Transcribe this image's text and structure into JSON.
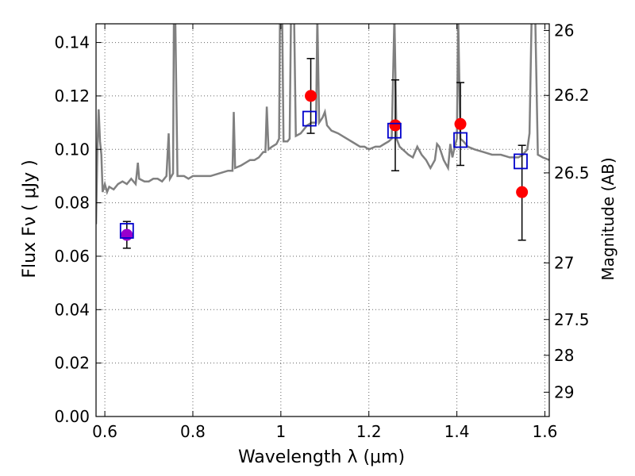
{
  "chart_data": {
    "type": "scatter",
    "xlabel": "Wavelength  λ (μm)",
    "ylabel": "Flux  Fν  ( μJy )",
    "y2label": "Magnitude (AB)",
    "xlim": [
      0.58,
      1.61
    ],
    "ylim": [
      0.0,
      0.147
    ],
    "x_ticks": [
      0.6,
      0.8,
      1.0,
      1.2,
      1.4,
      1.6
    ],
    "x_tick_labels": [
      "0.6",
      "0.8",
      "1",
      "1.2",
      "1.4",
      "1.6"
    ],
    "y_ticks": [
      0.0,
      0.02,
      0.04,
      0.06,
      0.08,
      0.1,
      0.12,
      0.14
    ],
    "y_tick_labels": [
      "0.00",
      "0.02",
      "0.04",
      "0.06",
      "0.08",
      "0.10",
      "0.12",
      "0.14"
    ],
    "mag_ticks": [
      {
        "label": "26",
        "flux": 0.1445
      },
      {
        "label": "26.2",
        "flux": 0.1202
      },
      {
        "label": "26.5",
        "flux": 0.0912
      },
      {
        "label": "27",
        "flux": 0.0575
      },
      {
        "label": "27.5",
        "flux": 0.0363
      },
      {
        "label": "28",
        "flux": 0.0229
      },
      {
        "label": "29",
        "flux": 0.0091
      }
    ],
    "grid": true,
    "colors": {
      "spectrum": "#808080",
      "observed": "#ff0000",
      "observed_first": "#9900cc",
      "model": "#0000cc",
      "errorbar": "#000000"
    },
    "series": [
      {
        "kind": "line",
        "points": [
          [
            0.58,
            0.072
          ],
          [
            0.583,
            0.1
          ],
          [
            0.586,
            0.115
          ],
          [
            0.589,
            0.103
          ],
          [
            0.592,
            0.098
          ],
          [
            0.595,
            0.084
          ],
          [
            0.6,
            0.087
          ],
          [
            0.605,
            0.084
          ],
          [
            0.61,
            0.086
          ],
          [
            0.62,
            0.085
          ],
          [
            0.63,
            0.087
          ],
          [
            0.64,
            0.088
          ],
          [
            0.65,
            0.087
          ],
          [
            0.66,
            0.089
          ],
          [
            0.67,
            0.087
          ],
          [
            0.672,
            0.09
          ],
          [
            0.675,
            0.095
          ],
          [
            0.678,
            0.089
          ],
          [
            0.69,
            0.088
          ],
          [
            0.7,
            0.088
          ],
          [
            0.71,
            0.089
          ],
          [
            0.72,
            0.089
          ],
          [
            0.73,
            0.088
          ],
          [
            0.74,
            0.09
          ],
          [
            0.745,
            0.106
          ],
          [
            0.748,
            0.089
          ],
          [
            0.755,
            0.091
          ],
          [
            0.757,
            0.15
          ],
          [
            0.76,
            0.15
          ],
          [
            0.765,
            0.09
          ],
          [
            0.77,
            0.09
          ],
          [
            0.78,
            0.09
          ],
          [
            0.79,
            0.089
          ],
          [
            0.8,
            0.09
          ],
          [
            0.82,
            0.09
          ],
          [
            0.84,
            0.09
          ],
          [
            0.86,
            0.091
          ],
          [
            0.88,
            0.092
          ],
          [
            0.89,
            0.092
          ],
          [
            0.893,
            0.114
          ],
          [
            0.896,
            0.093
          ],
          [
            0.91,
            0.094
          ],
          [
            0.92,
            0.095
          ],
          [
            0.93,
            0.096
          ],
          [
            0.94,
            0.096
          ],
          [
            0.95,
            0.097
          ],
          [
            0.96,
            0.099
          ],
          [
            0.965,
            0.099
          ],
          [
            0.968,
            0.116
          ],
          [
            0.972,
            0.1
          ],
          [
            0.98,
            0.101
          ],
          [
            0.99,
            0.102
          ],
          [
            0.996,
            0.104
          ],
          [
            0.998,
            0.15
          ],
          [
            1.003,
            0.15
          ],
          [
            1.006,
            0.103
          ],
          [
            1.015,
            0.103
          ],
          [
            1.02,
            0.104
          ],
          [
            1.023,
            0.15
          ],
          [
            1.03,
            0.15
          ],
          [
            1.034,
            0.105
          ],
          [
            1.045,
            0.106
          ],
          [
            1.055,
            0.108
          ],
          [
            1.06,
            0.109
          ],
          [
            1.07,
            0.11
          ],
          [
            1.08,
            0.11
          ],
          [
            1.083,
            0.15
          ],
          [
            1.087,
            0.11
          ],
          [
            1.095,
            0.112
          ],
          [
            1.1,
            0.114
          ],
          [
            1.105,
            0.109
          ],
          [
            1.115,
            0.107
          ],
          [
            1.13,
            0.106
          ],
          [
            1.15,
            0.104
          ],
          [
            1.17,
            0.102
          ],
          [
            1.18,
            0.101
          ],
          [
            1.19,
            0.101
          ],
          [
            1.2,
            0.1
          ],
          [
            1.215,
            0.101
          ],
          [
            1.225,
            0.101
          ],
          [
            1.235,
            0.102
          ],
          [
            1.245,
            0.103
          ],
          [
            1.252,
            0.104
          ],
          [
            1.258,
            0.15
          ],
          [
            1.263,
            0.104
          ],
          [
            1.27,
            0.101
          ],
          [
            1.29,
            0.098
          ],
          [
            1.3,
            0.097
          ],
          [
            1.31,
            0.101
          ],
          [
            1.32,
            0.098
          ],
          [
            1.33,
            0.096
          ],
          [
            1.34,
            0.093
          ],
          [
            1.35,
            0.096
          ],
          [
            1.355,
            0.102
          ],
          [
            1.36,
            0.101
          ],
          [
            1.37,
            0.096
          ],
          [
            1.38,
            0.093
          ],
          [
            1.385,
            0.102
          ],
          [
            1.39,
            0.097
          ],
          [
            1.395,
            0.101
          ],
          [
            1.4,
            0.104
          ],
          [
            1.403,
            0.15
          ],
          [
            1.408,
            0.104
          ],
          [
            1.415,
            0.103
          ],
          [
            1.425,
            0.101
          ],
          [
            1.44,
            0.1
          ],
          [
            1.46,
            0.099
          ],
          [
            1.48,
            0.098
          ],
          [
            1.5,
            0.098
          ],
          [
            1.52,
            0.097
          ],
          [
            1.54,
            0.097
          ],
          [
            1.55,
            0.098
          ],
          [
            1.56,
            0.1
          ],
          [
            1.565,
            0.106
          ],
          [
            1.57,
            0.15
          ],
          [
            1.578,
            0.15
          ],
          [
            1.584,
            0.098
          ],
          [
            1.595,
            0.097
          ],
          [
            1.61,
            0.096
          ]
        ]
      },
      {
        "kind": "observed",
        "points": [
          {
            "x": 0.65,
            "y": 0.068,
            "yerr": [
              0.063,
              0.073
            ]
          },
          {
            "x": 1.068,
            "y": 0.12,
            "yerr": [
              0.106,
              0.134
            ]
          },
          {
            "x": 1.26,
            "y": 0.109,
            "yerr": [
              0.092,
              0.126
            ]
          },
          {
            "x": 1.408,
            "y": 0.1095,
            "yerr": [
              0.094,
              0.125
            ]
          },
          {
            "x": 1.548,
            "y": 0.084,
            "yerr": [
              0.066,
              0.1015
            ]
          }
        ]
      },
      {
        "kind": "model",
        "points": [
          {
            "x": 0.65,
            "y": 0.0695
          },
          {
            "x": 1.065,
            "y": 0.1115
          },
          {
            "x": 1.258,
            "y": 0.107
          },
          {
            "x": 1.408,
            "y": 0.1035
          },
          {
            "x": 1.545,
            "y": 0.0955
          }
        ]
      }
    ]
  }
}
